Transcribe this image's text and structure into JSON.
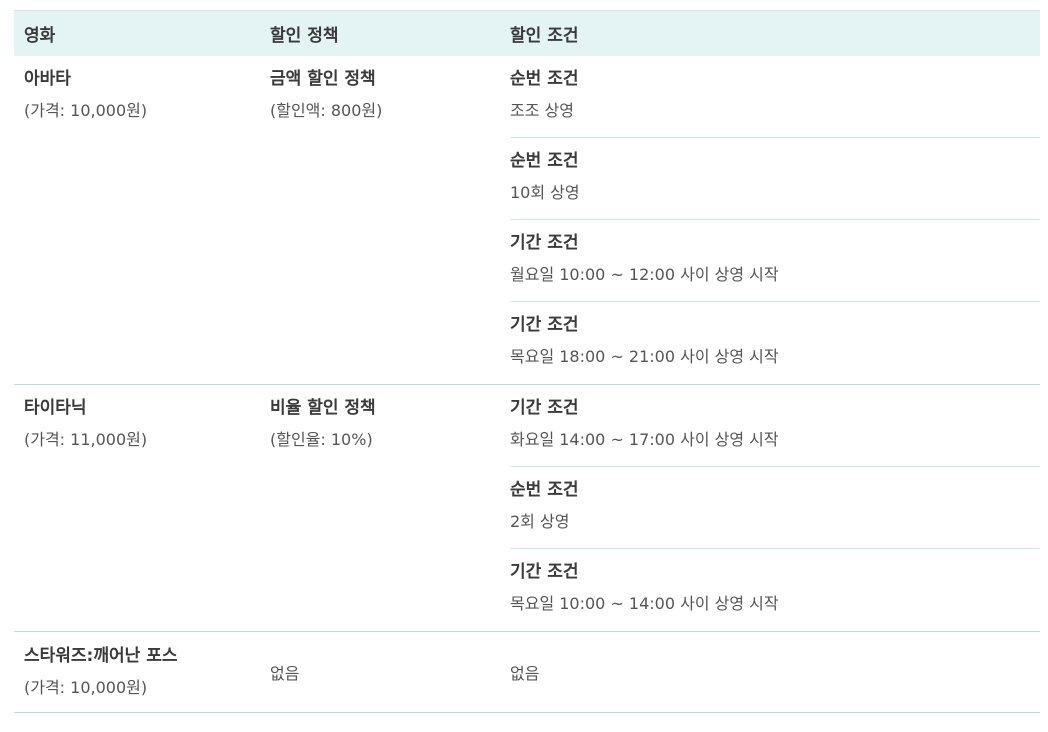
{
  "header": {
    "movie": "영화",
    "policy": "할인 정책",
    "condition": "할인 조건"
  },
  "rows": [
    {
      "movie": "아바타",
      "price": "(가격: 10,000원)",
      "policy": "금액 할인 정책",
      "policy_detail": "(할인액: 800원)",
      "conditions": [
        {
          "title": "순번 조건",
          "desc": "조조 상영"
        },
        {
          "title": "순번 조건",
          "desc": "10회 상영"
        },
        {
          "title": "기간 조건",
          "desc": "월요일 10:00 ~ 12:00 사이 상영 시작"
        },
        {
          "title": "기간 조건",
          "desc": "목요일 18:00 ~ 21:00 사이 상영 시작"
        }
      ]
    },
    {
      "movie": "타이타닉",
      "price": "(가격: 11,000원)",
      "policy": "비율 할인 정책",
      "policy_detail": "(할인율: 10%)",
      "conditions": [
        {
          "title": "기간 조건",
          "desc": "화요일 14:00 ~ 17:00 사이 상영 시작"
        },
        {
          "title": "순번 조건",
          "desc": "2회 상영"
        },
        {
          "title": "기간 조건",
          "desc": "목요일 10:00 ~ 14:00 사이 상영 시작"
        }
      ]
    },
    {
      "movie": "스타워즈:깨어난 포스",
      "price": "(가격: 10,000원)",
      "policy": "없음",
      "condition": "없음"
    }
  ]
}
